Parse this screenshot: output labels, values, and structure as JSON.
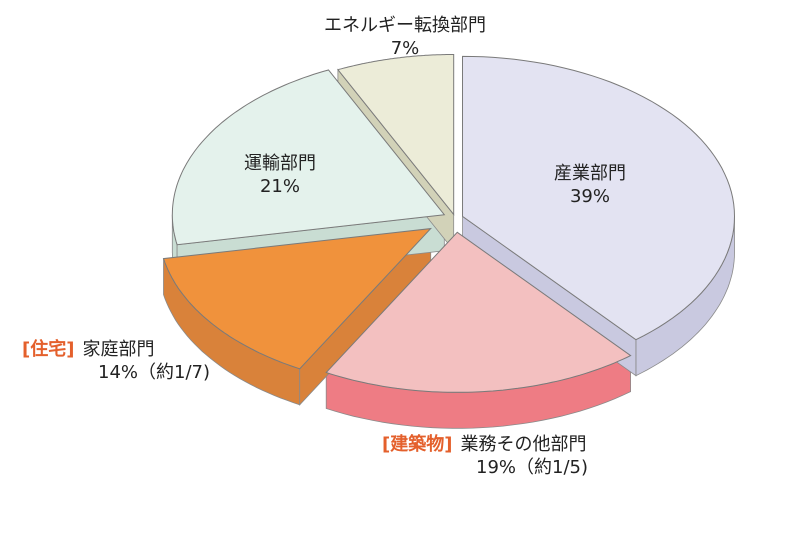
{
  "chart_data": {
    "type": "pie",
    "title": "",
    "slices": [
      {
        "label": "産業部門",
        "value": 39,
        "display_value": "39%",
        "tag": "",
        "color": "#e3e3f2",
        "side_color": "#c9c9e0"
      },
      {
        "label": "業務その他部門",
        "value": 19,
        "display_value": "19%（約1/5)",
        "tag": "[建築物]",
        "color": "#f3c0c0",
        "side_color": "#ee7c84"
      },
      {
        "label": "家庭部門",
        "value": 14,
        "display_value": "14%（約1/7)",
        "tag": "[住宅]",
        "color": "#f0923c",
        "side_color": "#d9823a"
      },
      {
        "label": "運輸部門",
        "value": 21,
        "display_value": "21%",
        "tag": "",
        "color": "#e4f2ec",
        "side_color": "#c9ddd3"
      },
      {
        "label": "エネルギー転換部門",
        "value": 7,
        "display_value": "7%",
        "tag": "",
        "color": "#ececd8",
        "side_color": "#d2d2b8"
      }
    ]
  }
}
